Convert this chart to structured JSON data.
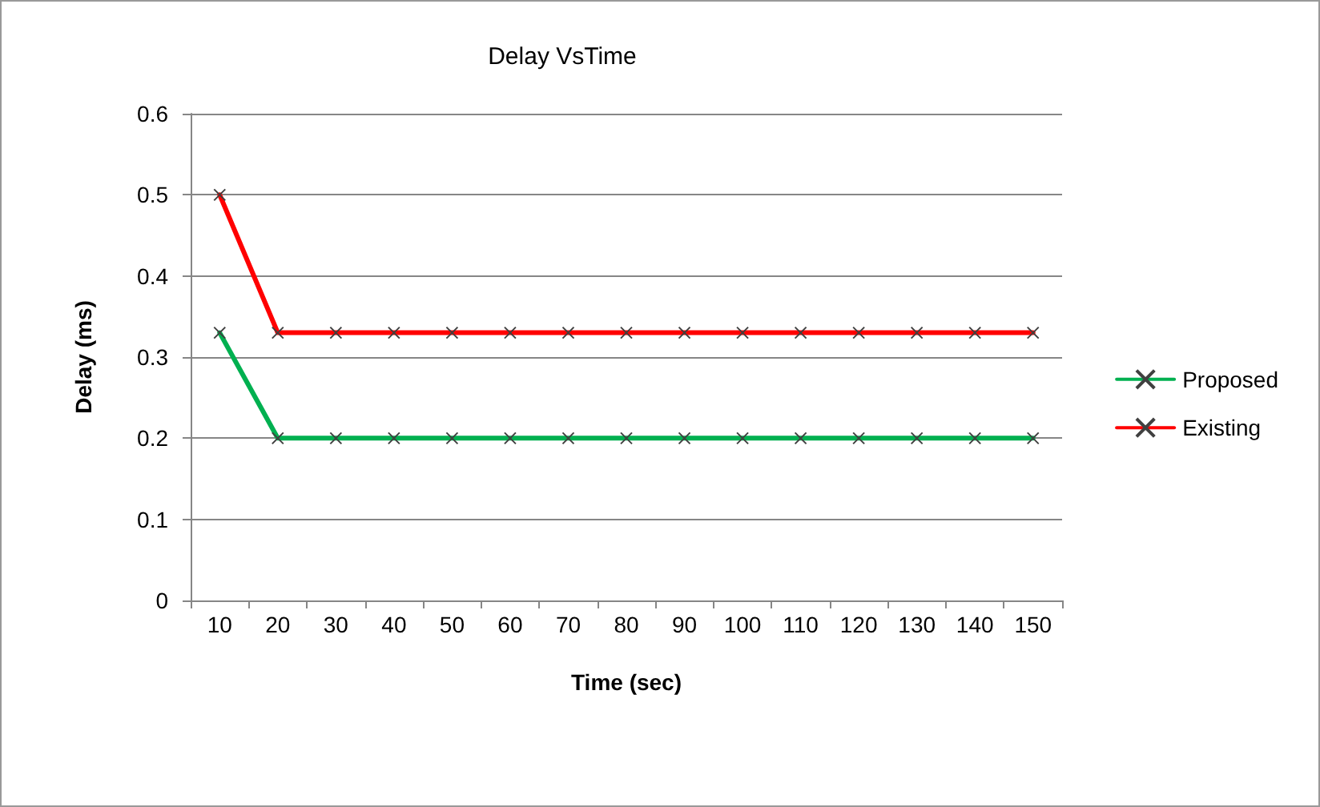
{
  "chart_data": {
    "type": "line",
    "title": "Delay VsTime",
    "xlabel": "Time (sec)",
    "ylabel": "Delay (ms)",
    "categories": [
      "10",
      "20",
      "30",
      "40",
      "50",
      "60",
      "70",
      "80",
      "90",
      "100",
      "110",
      "120",
      "130",
      "140",
      "150"
    ],
    "series": [
      {
        "name": "Proposed",
        "color": "#00b050",
        "values": [
          0.33,
          0.2,
          0.2,
          0.2,
          0.2,
          0.2,
          0.2,
          0.2,
          0.2,
          0.2,
          0.2,
          0.2,
          0.2,
          0.2,
          0.2
        ]
      },
      {
        "name": "Existing",
        "color": "#ff0000",
        "values": [
          0.5,
          0.33,
          0.33,
          0.33,
          0.33,
          0.33,
          0.33,
          0.33,
          0.33,
          0.33,
          0.33,
          0.33,
          0.33,
          0.33,
          0.33
        ]
      }
    ],
    "ylim": [
      0,
      0.6
    ],
    "yticks": [
      0,
      0.1,
      0.2,
      0.3,
      0.4,
      0.5,
      0.6
    ],
    "grid": "y",
    "legend": "right",
    "marker": "cross",
    "line_style": "solid"
  }
}
